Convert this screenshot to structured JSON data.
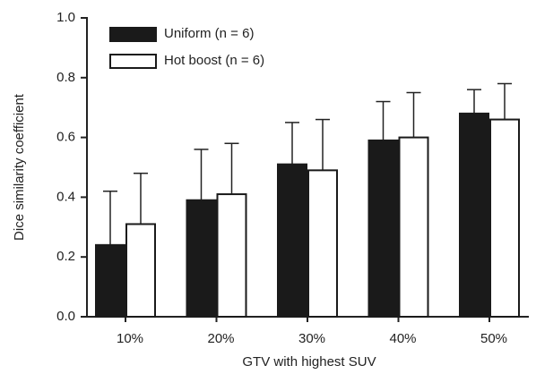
{
  "chart_data": {
    "type": "bar",
    "x_label": "GTV with highest SUV",
    "y_label": "Dice similarity coefficient",
    "categories": [
      "10%",
      "20%",
      "30%",
      "40%",
      "50%"
    ],
    "series": [
      {
        "name": "Uniform (n = 6)",
        "color": "#1a1a1a",
        "values": [
          0.24,
          0.39,
          0.51,
          0.59,
          0.68
        ],
        "errors": [
          0.18,
          0.17,
          0.14,
          0.13,
          0.08
        ]
      },
      {
        "name": "Hot boost (n = 6)",
        "color": "#ffffff",
        "values": [
          0.31,
          0.41,
          0.49,
          0.6,
          0.66
        ],
        "errors": [
          0.17,
          0.17,
          0.17,
          0.15,
          0.12
        ]
      }
    ],
    "ylim": [
      0,
      1
    ],
    "yticks": [
      {
        "value": 0,
        "label": "0.0"
      },
      {
        "value": 0.2,
        "label": "0.2"
      },
      {
        "value": 0.4,
        "label": "0.4"
      },
      {
        "value": 0.6,
        "label": "0.6"
      },
      {
        "value": 0.8,
        "label": "0.8"
      },
      {
        "value": 1,
        "label": "1.0"
      }
    ],
    "legend": "upper left"
  }
}
